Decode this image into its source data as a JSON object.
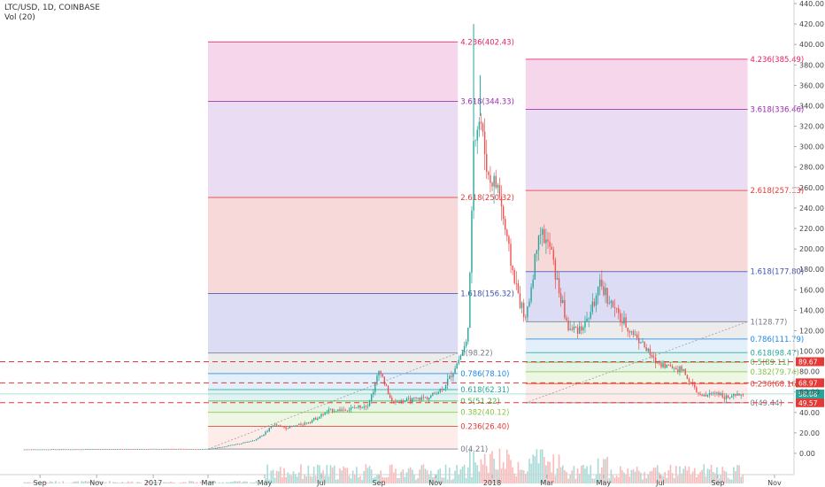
{
  "header": {
    "symbol": "LTC/USD, 1D, COINBASE",
    "indicator": "Vol (20)"
  },
  "colors": {
    "up": "#26a69a",
    "down": "#ef5350",
    "dashed": "#e53935",
    "axis_bg": "#ffffff"
  },
  "chart_data": {
    "type": "candlestick",
    "y_ticks": [
      "440.00",
      "420.00",
      "400.00",
      "380.00",
      "360.00",
      "340.00",
      "320.00",
      "300.00",
      "280.00",
      "260.00",
      "240.00",
      "220.00",
      "200.00",
      "180.00",
      "160.00",
      "140.00",
      "120.00",
      "100.00",
      "80.00",
      "60.00",
      "40.00",
      "20.00",
      "0.00"
    ],
    "y_tick_values": [
      440,
      420,
      400,
      380,
      360,
      340,
      320,
      300,
      280,
      260,
      240,
      220,
      200,
      180,
      160,
      140,
      120,
      100,
      80,
      60,
      40,
      20,
      0
    ],
    "x_ticks": [
      "Sep",
      "Nov",
      "2017",
      "Mar",
      "May",
      "Jul",
      "Sep",
      "Nov",
      "2018",
      "Mar",
      "May",
      "Jul",
      "Sep",
      "Nov"
    ],
    "price_path": [
      {
        "t": "2016-08-15",
        "p": 3.8
      },
      {
        "t": "2016-12-31",
        "p": 4.3
      },
      {
        "t": "2017-03-01",
        "p": 4.2
      },
      {
        "t": "2017-03-25",
        "p": 8
      },
      {
        "t": "2017-04-20",
        "p": 13
      },
      {
        "t": "2017-05-10",
        "p": 28
      },
      {
        "t": "2017-05-25",
        "p": 25
      },
      {
        "t": "2017-06-15",
        "p": 30
      },
      {
        "t": "2017-07-10",
        "p": 42
      },
      {
        "t": "2017-07-30",
        "p": 43
      },
      {
        "t": "2017-08-20",
        "p": 48
      },
      {
        "t": "2017-09-02",
        "p": 84
      },
      {
        "t": "2017-09-15",
        "p": 50
      },
      {
        "t": "2017-10-05",
        "p": 52
      },
      {
        "t": "2017-10-25",
        "p": 55
      },
      {
        "t": "2017-11-10",
        "p": 65
      },
      {
        "t": "2017-11-25",
        "p": 90
      },
      {
        "t": "2017-12-05",
        "p": 110
      },
      {
        "t": "2017-12-12",
        "p": 310
      },
      {
        "t": "2017-12-19",
        "p": 330
      },
      {
        "t": "2017-12-28",
        "p": 270
      },
      {
        "t": "2018-01-08",
        "p": 260
      },
      {
        "t": "2018-01-25",
        "p": 170
      },
      {
        "t": "2018-02-06",
        "p": 130
      },
      {
        "t": "2018-02-20",
        "p": 220
      },
      {
        "t": "2018-03-05",
        "p": 200
      },
      {
        "t": "2018-03-25",
        "p": 120
      },
      {
        "t": "2018-04-10",
        "p": 125
      },
      {
        "t": "2018-04-28",
        "p": 165
      },
      {
        "t": "2018-05-20",
        "p": 130
      },
      {
        "t": "2018-06-10",
        "p": 110
      },
      {
        "t": "2018-06-25",
        "p": 90
      },
      {
        "t": "2018-07-10",
        "p": 85
      },
      {
        "t": "2018-07-25",
        "p": 82
      },
      {
        "t": "2018-08-14",
        "p": 55
      },
      {
        "t": "2018-08-31",
        "p": 60
      },
      {
        "t": "2018-09-12",
        "p": 54
      },
      {
        "t": "2018-09-28",
        "p": 58
      }
    ],
    "markers": [
      {
        "t": "2017-12-12",
        "high": 420
      },
      {
        "t": "2017-12-19",
        "high": 370
      }
    ],
    "fib_sets": [
      {
        "start": "2017-03-01",
        "end": "2017-11-25",
        "levels": [
          {
            "ratio": "0",
            "value": 4.21,
            "label": "0(4.21)",
            "color": "#787b86",
            "fill": null
          },
          {
            "ratio": "0.236",
            "value": 26.4,
            "label": "0.236(26.40)",
            "color": "#e53935",
            "fill": "#fdecea"
          },
          {
            "ratio": "0.382",
            "value": 40.12,
            "label": "0.382(40.12)",
            "color": "#8bc34a",
            "fill": "#eef7e3"
          },
          {
            "ratio": "0.5",
            "value": 51.22,
            "label": "0.5(51.22)",
            "color": "#4caf50",
            "fill": "#e6f4e6"
          },
          {
            "ratio": "0.618",
            "value": 62.31,
            "label": "0.618(62.31)",
            "color": "#26a69a",
            "fill": "#e0f2f1"
          },
          {
            "ratio": "0.786",
            "value": 78.1,
            "label": "0.786(78.10)",
            "color": "#1e88e5",
            "fill": "#e3f0fb"
          },
          {
            "ratio": "1",
            "value": 98.22,
            "label": "1(98.22)",
            "color": "#787b86",
            "fill": "#ececec"
          },
          {
            "ratio": "1.618",
            "value": 156.32,
            "label": "1.618(156.32)",
            "color": "#3f51b5",
            "fill": "#dcdcf4"
          },
          {
            "ratio": "2.618",
            "value": 250.32,
            "label": "2.618(250.32)",
            "color": "#e53935",
            "fill": "#f7d9d9"
          },
          {
            "ratio": "3.618",
            "value": 344.33,
            "label": "3.618(344.33)",
            "color": "#9c27b0",
            "fill": "#eadcf2"
          },
          {
            "ratio": "4.236",
            "value": 402.43,
            "label": "4.236(402.43)",
            "color": "#e91e63",
            "fill": "#f5d6ea"
          }
        ]
      },
      {
        "start": "2018-02-06",
        "end": "2018-10-03",
        "levels": [
          {
            "ratio": "0",
            "value": 49.44,
            "label": "0(49.44)",
            "color": "#787b86",
            "fill": null
          },
          {
            "ratio": "0.236",
            "value": 68.16,
            "label": "0.236(68.16)",
            "color": "#e53935",
            "fill": "#fdecea"
          },
          {
            "ratio": "0.382",
            "value": 79.74,
            "label": "0.382(79.74)",
            "color": "#8bc34a",
            "fill": "#eef7e3"
          },
          {
            "ratio": "0.5",
            "value": 89.11,
            "label": "0.5(89.11)",
            "color": "#4caf50",
            "fill": "#e6f4e6"
          },
          {
            "ratio": "0.618",
            "value": 98.47,
            "label": "0.618(98.47)",
            "color": "#26a69a",
            "fill": "#e0f2f1"
          },
          {
            "ratio": "0.786",
            "value": 111.79,
            "label": "0.786(111.79)",
            "color": "#1e88e5",
            "fill": "#e3f0fb"
          },
          {
            "ratio": "1",
            "value": 128.77,
            "label": "1(128.77)",
            "color": "#787b86",
            "fill": "#ececec"
          },
          {
            "ratio": "1.618",
            "value": 177.8,
            "label": "1.618(177.80)",
            "color": "#3f51b5",
            "fill": "#dcdcf4"
          },
          {
            "ratio": "2.618",
            "value": 257.13,
            "label": "2.618(257.13)",
            "color": "#e53935",
            "fill": "#f7d9d9"
          },
          {
            "ratio": "3.618",
            "value": 336.46,
            "label": "3.618(336.46)",
            "color": "#9c27b0",
            "fill": "#eadcf2"
          },
          {
            "ratio": "4.236",
            "value": 385.49,
            "label": "4.236(385.49)",
            "color": "#e91e63",
            "fill": "#f5d6ea"
          }
        ]
      }
    ],
    "horizontal_lines": [
      {
        "value": 89.67,
        "label": "89.67"
      },
      {
        "value": 68.97,
        "label": "68.97"
      },
      {
        "value": 49.57,
        "label": "49.57"
      }
    ],
    "last_price": {
      "value": 58.08,
      "label": "58.08"
    }
  }
}
